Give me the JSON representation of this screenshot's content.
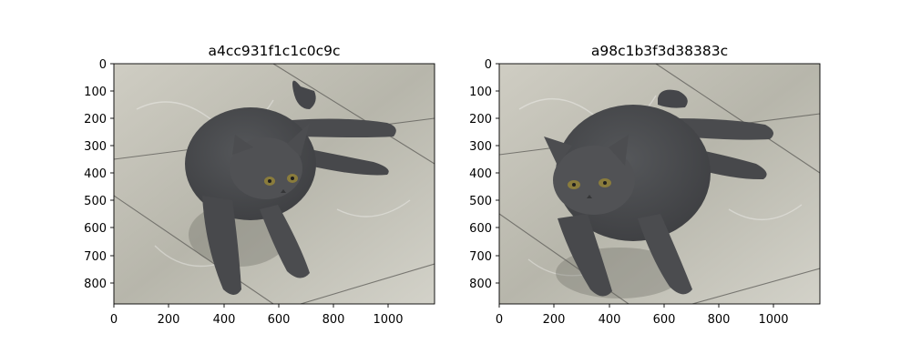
{
  "figure": {
    "panels": [
      {
        "title": "a4cc931f1c1c0c9c",
        "x_ticks": [
          "0",
          "200",
          "400",
          "600",
          "800",
          "1000"
        ],
        "y_ticks": [
          "0",
          "100",
          "200",
          "300",
          "400",
          "500",
          "600",
          "700",
          "800"
        ],
        "xlim": [
          0,
          1170
        ],
        "ylim": [
          875,
          0
        ],
        "image_subject": "gray-cat-icon"
      },
      {
        "title": "a98c1b3f3d38383c",
        "x_ticks": [
          "0",
          "200",
          "400",
          "600",
          "800",
          "1000"
        ],
        "y_ticks": [
          "0",
          "100",
          "200",
          "300",
          "400",
          "500",
          "600",
          "700",
          "800"
        ],
        "xlim": [
          0,
          1170
        ],
        "ylim": [
          875,
          0
        ],
        "image_subject": "gray-cat-icon"
      }
    ],
    "colors": {
      "floor": "#b9b8ad",
      "floor_light": "#d6d5cc",
      "cat": "#4a4b4d",
      "cat_shadow": "#3a3b3d",
      "eye": "#8a7c3c"
    }
  }
}
